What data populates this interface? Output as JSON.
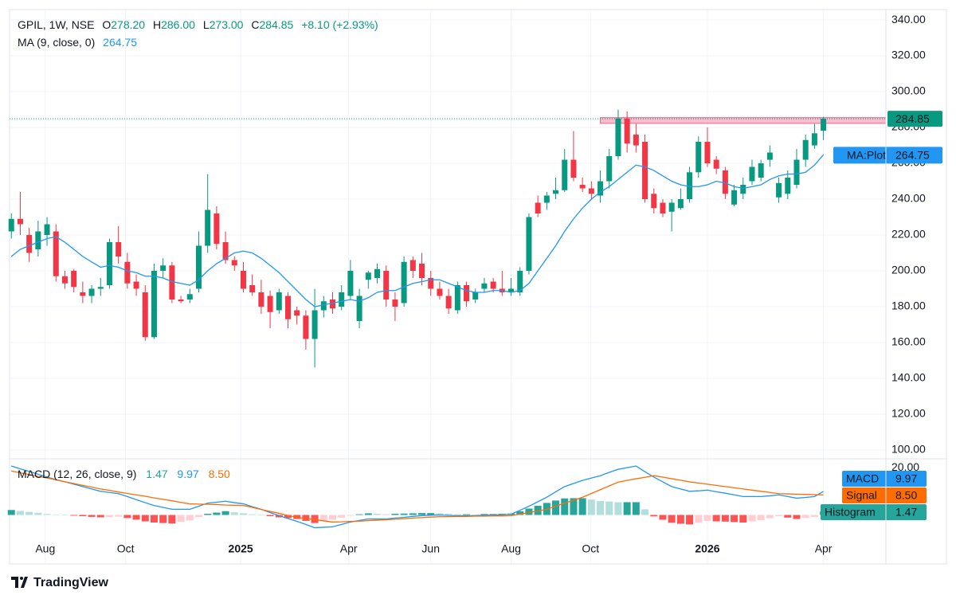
{
  "chart_data": {
    "type": "candlestick",
    "legend": {
      "symbol": "GPIL, 1W, NSE",
      "fields": [
        [
          "O",
          "278.20"
        ],
        [
          "H",
          "286.00"
        ],
        [
          "L",
          "273.00"
        ],
        [
          "C",
          "284.85"
        ]
      ],
      "change": "+8.10 (+2.93%)"
    },
    "ma_legend": {
      "name": "MA (9, close, 0)",
      "value": "264.75"
    },
    "up_color": "#089981",
    "down_color": "#f23645",
    "open": [
      222,
      229,
      220,
      212,
      220,
      222,
      197,
      200,
      188,
      186,
      190,
      192,
      216,
      205,
      194,
      188,
      163,
      200,
      203,
      184,
      184,
      190,
      214,
      232,
      216,
      206,
      200,
      192,
      188,
      186,
      178,
      186,
      178,
      175,
      162,
      178,
      184,
      180,
      186,
      172,
      195,
      196,
      200,
      184,
      182,
      206,
      204,
      196,
      190,
      186,
      178,
      192,
      184,
      190,
      194,
      190,
      188,
      188,
      200,
      238,
      238,
      243,
      245,
      262,
      248,
      246,
      242,
      250,
      264,
      285,
      276,
      272,
      243,
      238,
      233,
      235,
      240,
      255,
      272,
      262,
      256,
      237,
      243,
      250,
      252,
      262,
      241,
      243,
      248,
      262,
      270,
      278.2
    ],
    "high": [
      232,
      244,
      224,
      228,
      230,
      226,
      200,
      201,
      194,
      192,
      196,
      218,
      225,
      210,
      198,
      192,
      204,
      207,
      205,
      186,
      190,
      222,
      254,
      236,
      222,
      208,
      205,
      198,
      195,
      189,
      190,
      188,
      180,
      178,
      190,
      186,
      188,
      192,
      206,
      190,
      200,
      204,
      203,
      188,
      208,
      208,
      210,
      200,
      194,
      190,
      194,
      194,
      190,
      196,
      196,
      200,
      196,
      202,
      232,
      242,
      244,
      252,
      268,
      278,
      252,
      250,
      256,
      268,
      290,
      289,
      282,
      276,
      246,
      240,
      240,
      246,
      258,
      275,
      280,
      264,
      258,
      248,
      252,
      262,
      262,
      270,
      252,
      256,
      268,
      276,
      282,
      286
    ],
    "low": [
      218,
      220,
      205,
      208,
      214,
      194,
      190,
      188,
      182,
      182,
      186,
      190,
      204,
      190,
      186,
      161,
      162,
      196,
      182,
      182,
      182,
      188,
      210,
      212,
      204,
      200,
      188,
      186,
      176,
      168,
      176,
      168,
      170,
      156,
      146,
      174,
      176,
      178,
      184,
      168,
      190,
      193,
      180,
      172,
      180,
      196,
      192,
      186,
      184,
      176,
      176,
      180,
      182,
      188,
      188,
      186,
      186,
      186,
      198,
      230,
      234,
      240,
      244,
      250,
      244,
      240,
      238,
      246,
      262,
      266,
      266,
      238,
      232,
      230,
      222,
      234,
      238,
      252,
      258,
      254,
      240,
      236,
      240,
      248,
      250,
      258,
      238,
      240,
      246,
      258,
      268,
      273
    ],
    "close": [
      229,
      226,
      210,
      222,
      226,
      197,
      193,
      191,
      186,
      190,
      191,
      216,
      208,
      193,
      190,
      163,
      200,
      203,
      184,
      183,
      187,
      214,
      234,
      215,
      206,
      203,
      190,
      188,
      180,
      177,
      188,
      173,
      175,
      162,
      178,
      183,
      179,
      188,
      200,
      186,
      199,
      201,
      184,
      180,
      205,
      200,
      196,
      190,
      186,
      179,
      192,
      183,
      188,
      193,
      190,
      188,
      190,
      200,
      230,
      232,
      242,
      245,
      262,
      252,
      246,
      243,
      250,
      264,
      285,
      271,
      270,
      240,
      235,
      232,
      238,
      240,
      255,
      272,
      260,
      257,
      243,
      245,
      248,
      258,
      260,
      266,
      249,
      252,
      262,
      273,
      276.75,
      284.85
    ],
    "ma": {
      "name": "MA:Plot",
      "color": "#2196f3",
      "value_label": "264.75",
      "values": [
        208,
        212,
        214,
        216,
        218,
        219,
        216,
        212,
        208,
        205,
        202,
        203,
        202,
        200,
        199,
        197,
        197,
        196,
        194,
        193,
        192,
        195,
        200,
        204,
        207,
        210,
        211,
        210,
        207,
        203,
        199,
        194,
        189,
        184,
        180,
        181,
        182,
        183,
        184,
        183,
        185,
        188,
        189,
        189,
        191,
        193,
        194,
        195,
        195,
        193,
        191,
        189,
        188,
        188,
        189,
        189,
        188,
        189,
        193,
        200,
        207,
        214,
        222,
        229,
        235,
        240,
        244,
        247,
        251,
        255,
        259,
        258,
        256,
        253,
        250,
        248,
        247,
        247,
        248,
        250,
        249,
        247,
        246,
        247,
        248,
        251,
        253,
        254,
        254,
        255,
        259,
        264.75
      ]
    },
    "last_price_label": "284.85",
    "zone": {
      "top": 285.5,
      "bottom": 282.3,
      "start": 66,
      "color": "#f7a1b8"
    },
    "xlim": [
      -0.2,
      98
    ],
    "xticks": [
      {
        "value": 3.8,
        "label": "Aug"
      },
      {
        "value": 12.8,
        "label": "Oct"
      },
      {
        "value": 25.7,
        "label": "2025"
      },
      {
        "value": 37.8,
        "label": "Apr"
      },
      {
        "value": 47,
        "label": "Jun"
      },
      {
        "value": 56,
        "label": "Aug"
      },
      {
        "value": 64.9,
        "label": "Oct"
      },
      {
        "value": 78,
        "label": "2026"
      },
      {
        "value": 91,
        "label": "Apr"
      }
    ],
    "ylim": [
      95.1,
      345.8
    ],
    "yticks": [
      {
        "value": 100,
        "label": "100.00"
      },
      {
        "value": 120,
        "label": "120.00"
      },
      {
        "value": 140,
        "label": "140.00"
      },
      {
        "value": 160,
        "label": "160.00"
      },
      {
        "value": 180,
        "label": "180.00"
      },
      {
        "value": 200,
        "label": "200.00"
      },
      {
        "value": 220,
        "label": "220.00"
      },
      {
        "value": 240,
        "label": "240.00"
      },
      {
        "value": 260,
        "label": "260.00"
      },
      {
        "value": 280,
        "label": "280.00"
      },
      {
        "value": 300,
        "label": "300.00"
      },
      {
        "value": 320,
        "label": "320.00"
      },
      {
        "value": 340,
        "label": "340.00"
      }
    ],
    "grid": true,
    "macd": {
      "title": "MACD (12, 26, close, 9)",
      "ylim": [
        -20.7,
        23.4
      ],
      "yticks": [
        {
          "value": 20,
          "label": "20.00"
        }
      ],
      "histogram": {
        "name": "Histogram",
        "value_label": "1.47",
        "colors": [
          "#26a69a",
          "#b2dfdb",
          "#ff5252",
          "#ffcdd2"
        ],
        "values": [
          2.1,
          1.7,
          1.3,
          0.9,
          0.4,
          0.2,
          0,
          -0.3,
          -0.5,
          -0.8,
          -1,
          -0.9,
          -0.7,
          -1.3,
          -2,
          -2.7,
          -3.2,
          -3.4,
          -3.6,
          -2.9,
          -2.3,
          -0.9,
          0.5,
          1,
          1.6,
          1.1,
          0.7,
          0.3,
          0.1,
          -0.5,
          -1,
          -1.3,
          -1.7,
          -2.5,
          -3.4,
          -2.7,
          -2,
          -1.1,
          -0.3,
          0.3,
          0.7,
          0.5,
          0.3,
          0.5,
          0.6,
          0.7,
          0.8,
          0.8,
          0.7,
          0.5,
          0.3,
          0.3,
          0.2,
          0.4,
          0.4,
          0.5,
          0.6,
          1.6,
          2.7,
          3.9,
          5.1,
          6.1,
          7,
          7.1,
          7.1,
          6.5,
          5.9,
          5.7,
          5.4,
          5.4,
          5.4,
          2.4,
          -0.6,
          -2,
          -3.3,
          -3.7,
          -4,
          -3.3,
          -2.5,
          -2.7,
          -2.8,
          -3,
          -3.2,
          -2.7,
          -2.2,
          -1.4,
          -0.5,
          -1.1,
          -1.7,
          -1.3,
          -0.8,
          1.47
        ]
      },
      "series": [
        {
          "name": "MACD",
          "color": "#2196f3",
          "value_label": "9.97",
          "values": [
            20.7,
            19.5,
            18.4,
            17.2,
            16,
            15,
            14,
            13,
            12,
            11,
            10,
            9.5,
            9,
            7.8,
            6.5,
            5.2,
            4,
            3.2,
            2.4,
            2.4,
            2.4,
            3.7,
            5,
            5.4,
            5.8,
            5.2,
            4.7,
            3.5,
            2.4,
            1,
            -0.3,
            -1.5,
            -2.7,
            -4,
            -5.4,
            -5.2,
            -5,
            -4,
            -3,
            -2.3,
            -1.7,
            -1.7,
            -1.7,
            -1.3,
            -1,
            -0.6,
            -0.3,
            -0.1,
            0,
            -0.2,
            -0.3,
            -0.3,
            -0.3,
            -0.1,
            0,
            0.1,
            0.3,
            2,
            3.7,
            5.6,
            7.5,
            9.8,
            12,
            13.3,
            14.6,
            15.6,
            16.6,
            18,
            19.3,
            20,
            20.7,
            18.3,
            16,
            14,
            12,
            11,
            10,
            10.2,
            10.5,
            9.8,
            9.2,
            8.5,
            7.8,
            7.8,
            7.8,
            8.1,
            8.5,
            7.8,
            7.1,
            7.4,
            7.8,
            9.97
          ]
        },
        {
          "name": "Signal",
          "color": "#ff6d00",
          "value_label": "8.50",
          "values": [
            18.6,
            17.8,
            17.1,
            16.3,
            15.6,
            14.8,
            14,
            13.3,
            12.5,
            11.8,
            11,
            10.4,
            9.7,
            9.1,
            8.5,
            7.9,
            7.2,
            6.6,
            6,
            5.3,
            4.7,
            4.6,
            4.5,
            4.4,
            4.2,
            4.1,
            4,
            3.2,
            2.3,
            1.5,
            0.7,
            -0.2,
            -1,
            -1.5,
            -2,
            -2.5,
            -3,
            -2.9,
            -2.7,
            -2.6,
            -2.4,
            -2.2,
            -2,
            -1.8,
            -1.6,
            -1.3,
            -1.1,
            -0.9,
            -0.7,
            -0.7,
            -0.6,
            -0.6,
            -0.5,
            -0.5,
            -0.4,
            -0.4,
            -0.3,
            0.4,
            1,
            1.7,
            2.4,
            3.7,
            5,
            6.2,
            7.5,
            9.1,
            10.7,
            12.3,
            13.9,
            14.6,
            15.3,
            15.9,
            16.6,
            16,
            15.3,
            14.7,
            14,
            13.5,
            13,
            12.5,
            12,
            11.5,
            11,
            10.5,
            10,
            9.5,
            9,
            8.9,
            8.8,
            8.7,
            8.6,
            8.5
          ]
        }
      ]
    },
    "branding": "TradingView"
  }
}
